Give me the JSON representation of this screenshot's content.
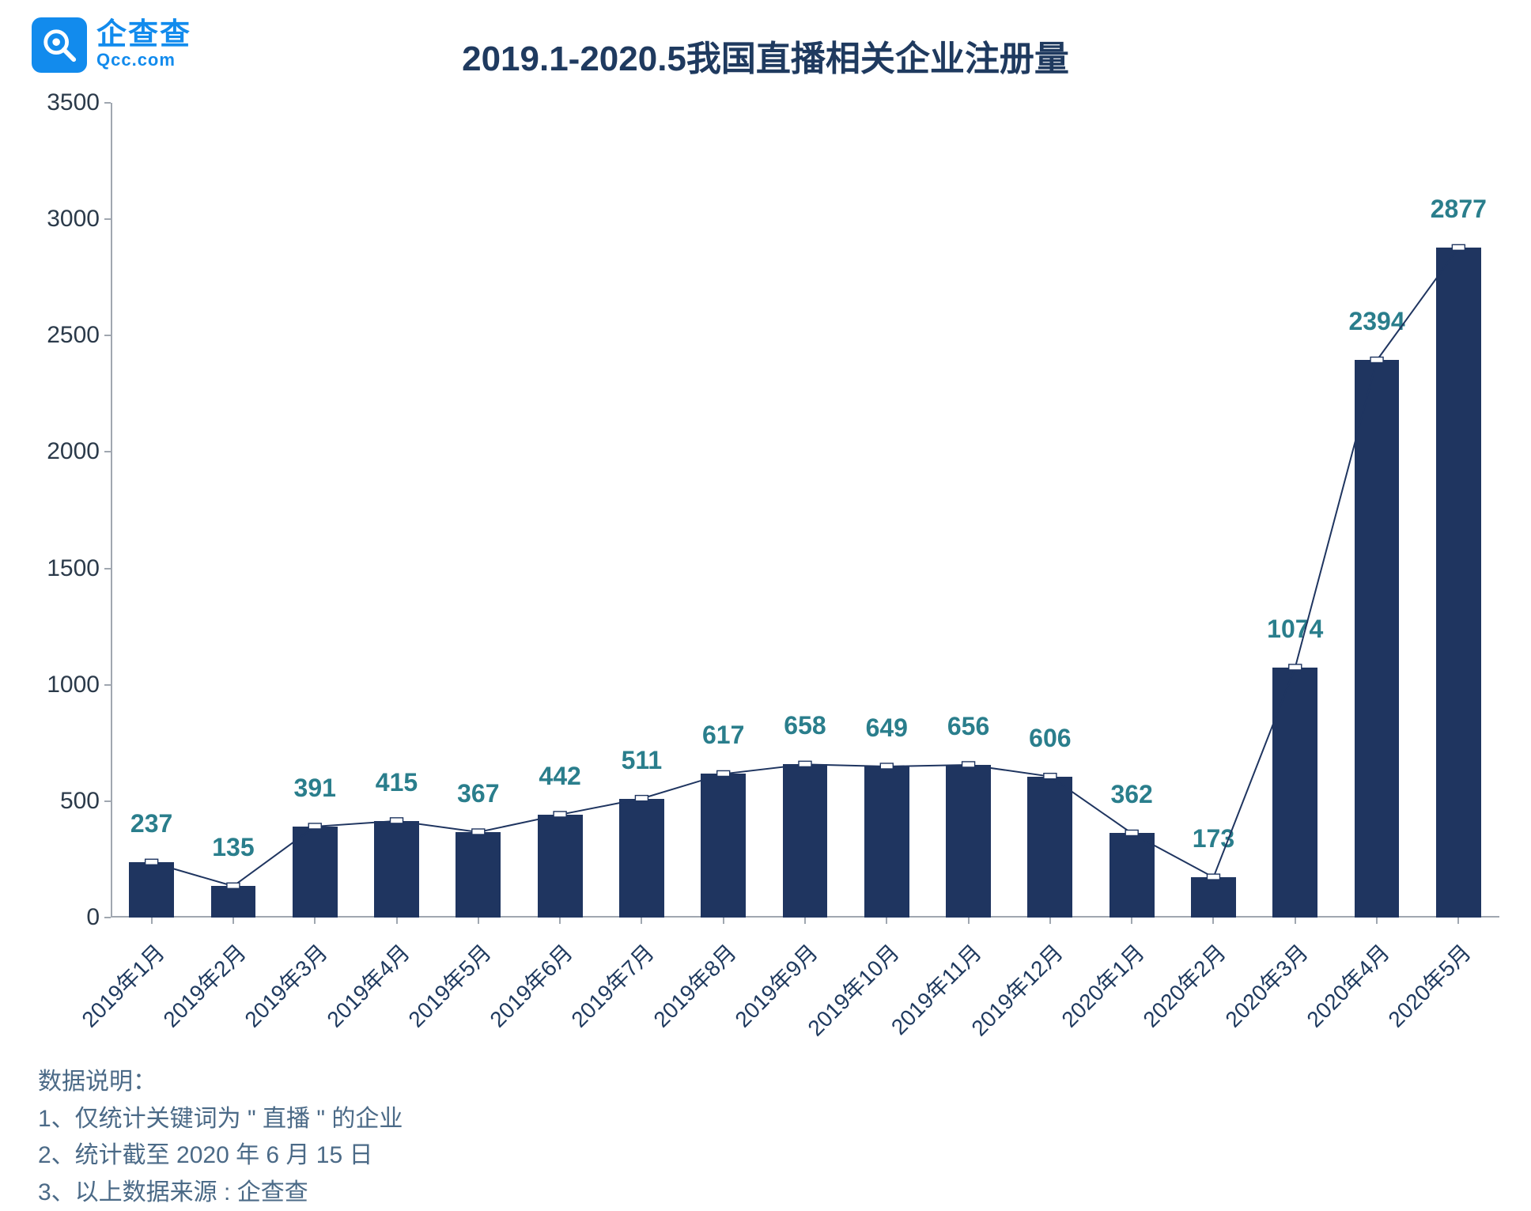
{
  "logo": {
    "cn": "企查查",
    "en": "Qcc.com"
  },
  "title": "2019.1-2020.5我国直播相关企业注册量",
  "chart": {
    "type": "bar+line",
    "categories": [
      "2019年1月",
      "2019年2月",
      "2019年3月",
      "2019年4月",
      "2019年5月",
      "2019年6月",
      "2019年7月",
      "2019年8月",
      "2019年9月",
      "2019年10月",
      "2019年11月",
      "2019年12月",
      "2020年1月",
      "2020年2月",
      "2020年3月",
      "2020年4月",
      "2020年5月"
    ],
    "values": [
      237,
      135,
      391,
      415,
      367,
      442,
      511,
      617,
      658,
      649,
      656,
      606,
      362,
      173,
      1074,
      2394,
      2877
    ],
    "ylim": [
      0,
      3500
    ],
    "ytick_step": 500,
    "bar_color": "#1f3560",
    "value_label_color": "#2a7e8c",
    "line_color": "#1f3560",
    "marker_fill": "#ffffff",
    "marker_border": "#1f3560",
    "axis_color": "#a0a7b0",
    "background_color": "#ffffff",
    "bar_width_ratio": 0.55,
    "value_label_fontsize": 32,
    "category_label_fontsize": 28,
    "title_fontsize": 44,
    "title_color": "#1f3a5f"
  },
  "footer": {
    "heading": "数据说明：",
    "lines": [
      "1、仅统计关键词为 \" 直播 \" 的企业",
      "2、统计截至 2020 年 6 月 15 日",
      "3、以上数据来源 : 企查查"
    ],
    "color": "#4b6a87",
    "fontsize": 30
  }
}
